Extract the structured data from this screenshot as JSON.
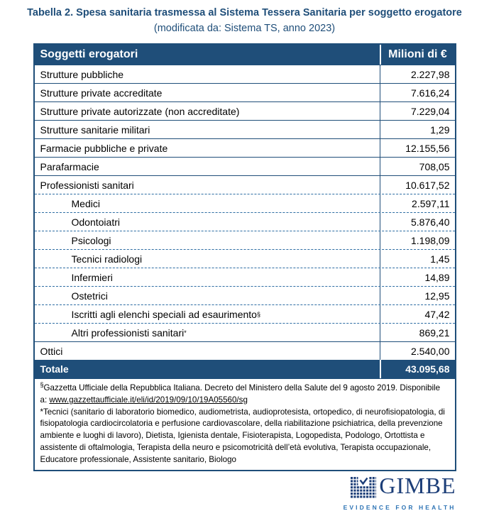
{
  "title": "Tabella 2. Spesa sanitaria trasmessa al Sistema Tessera Sanitaria per soggetto erogatore",
  "subtitle": "(modificata da: Sistema TS, anno 2023)",
  "table": {
    "header": {
      "label": "Soggetti erogatori",
      "value": "Milioni di €"
    },
    "rows": [
      {
        "label": "Strutture pubbliche",
        "value": "2.227,98",
        "indent": false,
        "dashed": false
      },
      {
        "label": "Strutture private accreditate",
        "value": "7.616,24",
        "indent": false,
        "dashed": false
      },
      {
        "label": "Strutture private autorizzate (non accreditate)",
        "value": "7.229,04",
        "indent": false,
        "dashed": false
      },
      {
        "label": "Strutture sanitarie militari",
        "value": "1,29",
        "indent": false,
        "dashed": false
      },
      {
        "label": "Farmacie pubbliche e private",
        "value": "12.155,56",
        "indent": false,
        "dashed": false
      },
      {
        "label": "Parafarmacie",
        "value": "708,05",
        "indent": false,
        "dashed": false
      },
      {
        "label": "Professionisti sanitari",
        "value": "10.617,52",
        "indent": false,
        "dashed": false
      },
      {
        "label": "Medici",
        "value": "2.597,11",
        "indent": true,
        "dashed": true
      },
      {
        "label": "Odontoiatri",
        "value": "5.876,40",
        "indent": true,
        "dashed": true
      },
      {
        "label": "Psicologi",
        "value": "1.198,09",
        "indent": true,
        "dashed": true
      },
      {
        "label": "Tecnici radiologi",
        "value": "1,45",
        "indent": true,
        "dashed": true
      },
      {
        "label": "Infermieri",
        "value": "14,89",
        "indent": true,
        "dashed": true
      },
      {
        "label": "Ostetrici",
        "value": "12,95",
        "indent": true,
        "dashed": true
      },
      {
        "label": "Iscritti agli elenchi speciali ad esaurimento",
        "sup": "§",
        "value": "47,42",
        "indent": true,
        "dashed": true
      },
      {
        "label": "Altri professionisti sanitari",
        "sup": "*",
        "value": "869,21",
        "indent": true,
        "dashed": true
      },
      {
        "label": "Ottici",
        "value": "2.540,00",
        "indent": false,
        "dashed": false
      }
    ],
    "total": {
      "label": "Totale",
      "value": "43.095,68"
    }
  },
  "footnotes": {
    "note1_sup": "§",
    "note1_text": "Gazzetta Ufficiale della Repubblica Italiana. Decreto del Ministero della Salute del 9 agosto 2019. Disponibile a: ",
    "note1_link": "www.gazzettaufficiale.it/eli/id/2019/09/10/19A05560/sg",
    "note2": "*Tecnici (sanitario di laboratorio biomedico, audiometrista, audioprotesista, ortopedico, di neurofisiopatologia, di fisiopatologia cardiocircolatoria e perfusione cardiovascolare, della riabilitazione psichiatrica, della prevenzione ambiente e luoghi di lavoro), Dietista, Igienista dentale, Fisioterapista, Logopedista, Podologo, Ortottista e assistente di oftalmologia, Terapista della neuro e psicomotricità dell’età evolutiva, Terapista occupazionale, Educatore professionale, Assistente sanitario, Biologo"
  },
  "logo": {
    "name": "GIMBE",
    "tagline": "EVIDENCE FOR HEALTH"
  },
  "colors": {
    "navy": "#1F4E79",
    "logo_navy": "#1C3E78",
    "logo_blue": "#2E74B5"
  }
}
